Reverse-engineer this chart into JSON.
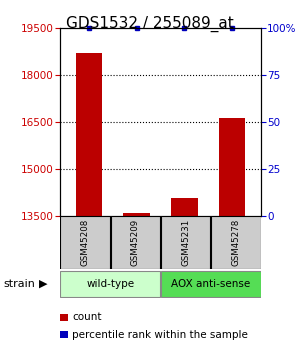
{
  "title": "GDS1532 / 255089_at",
  "samples": [
    "GSM45208",
    "GSM45209",
    "GSM45231",
    "GSM45278"
  ],
  "count_values": [
    18700,
    13580,
    14050,
    16600
  ],
  "percentile_values": [
    100,
    100,
    100,
    100
  ],
  "ylim_left": [
    13500,
    19500
  ],
  "ylim_right": [
    0,
    100
  ],
  "yticks_left": [
    13500,
    15000,
    16500,
    18000,
    19500
  ],
  "yticks_right": [
    0,
    25,
    50,
    75,
    100
  ],
  "grid_values": [
    15000,
    16500,
    18000
  ],
  "bar_color": "#bb0000",
  "percentile_color": "#0000bb",
  "title_fontsize": 11,
  "groups": [
    {
      "label": "wild-type",
      "indices": [
        0,
        1
      ],
      "color": "#ccffcc"
    },
    {
      "label": "AOX anti-sense",
      "indices": [
        2,
        3
      ],
      "color": "#55dd55"
    }
  ],
  "strain_label": "strain",
  "legend_count_label": "count",
  "legend_percentile_label": "percentile rank within the sample",
  "tick_label_color_left": "#cc0000",
  "tick_label_color_right": "#0000cc",
  "sample_box_color": "#cccccc",
  "bar_width": 0.55
}
